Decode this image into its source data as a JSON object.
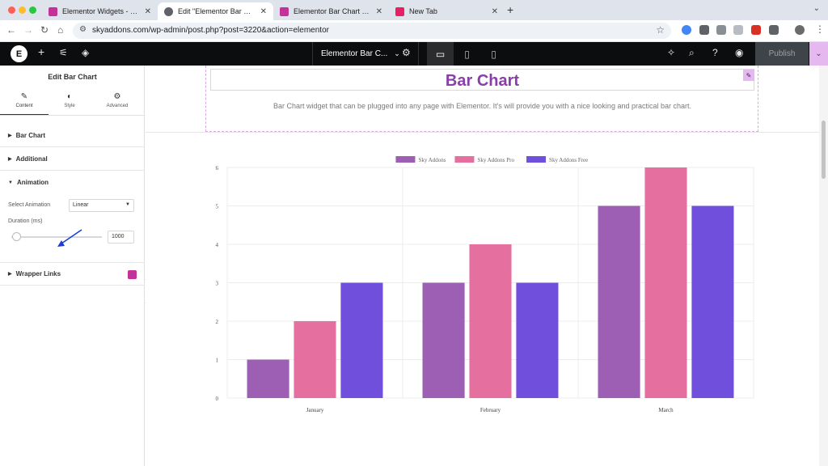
{
  "browser": {
    "tabs": [
      {
        "label": "Elementor Widgets - Sky Addo",
        "fav": "#c3329a",
        "active": false
      },
      {
        "label": "Edit \"Elementor Bar Chart Wi",
        "fav": "#5f6368",
        "active": true
      },
      {
        "label": "Elementor Bar Chart Widget",
        "fav": "#c3329a",
        "active": false
      },
      {
        "label": "New Tab",
        "fav": "#e91e63",
        "active": false
      }
    ],
    "new_tab_glyph": "+",
    "url": "skyaddons.com/wp-admin/post.php?post=3220&action=elementor"
  },
  "topbar": {
    "doc_title": "Elementor Bar C...",
    "publish_label": "Publish"
  },
  "panel": {
    "title": "Edit Bar Chart",
    "tabs": [
      "Content",
      "Style",
      "Advanced"
    ],
    "sections": {
      "bar_chart": "Bar Chart",
      "additional": "Additional",
      "animation": "Animation",
      "wrapper_links": "Wrapper Links"
    },
    "select_animation_label": "Select Animation",
    "select_animation_value": "Linear",
    "duration_label": "Duration (ms)",
    "duration_value": "1000",
    "duration_slider_fraction": 0.05
  },
  "canvas": {
    "heading": "Bar Chart",
    "description": "Bar Chart widget that can be plugged into any page with Elementor. It's will provide you with a nice looking and practical bar chart."
  },
  "chart_data": {
    "type": "bar",
    "categories": [
      "January",
      "February",
      "March"
    ],
    "series": [
      {
        "name": "Sky Addons",
        "values": [
          1,
          3,
          5
        ],
        "color": "#9c5fb3"
      },
      {
        "name": "Sky Addons Pro",
        "values": [
          2,
          4,
          6
        ],
        "color": "#e56f9f"
      },
      {
        "name": "Sky Addons Free",
        "values": [
          3,
          3,
          5
        ],
        "color": "#6f4fdc"
      }
    ],
    "yticks": [
      "0",
      "1",
      "2",
      "3",
      "4",
      "5",
      "6"
    ],
    "ylim": [
      0,
      6
    ],
    "legend": "top-center",
    "grid": true
  }
}
